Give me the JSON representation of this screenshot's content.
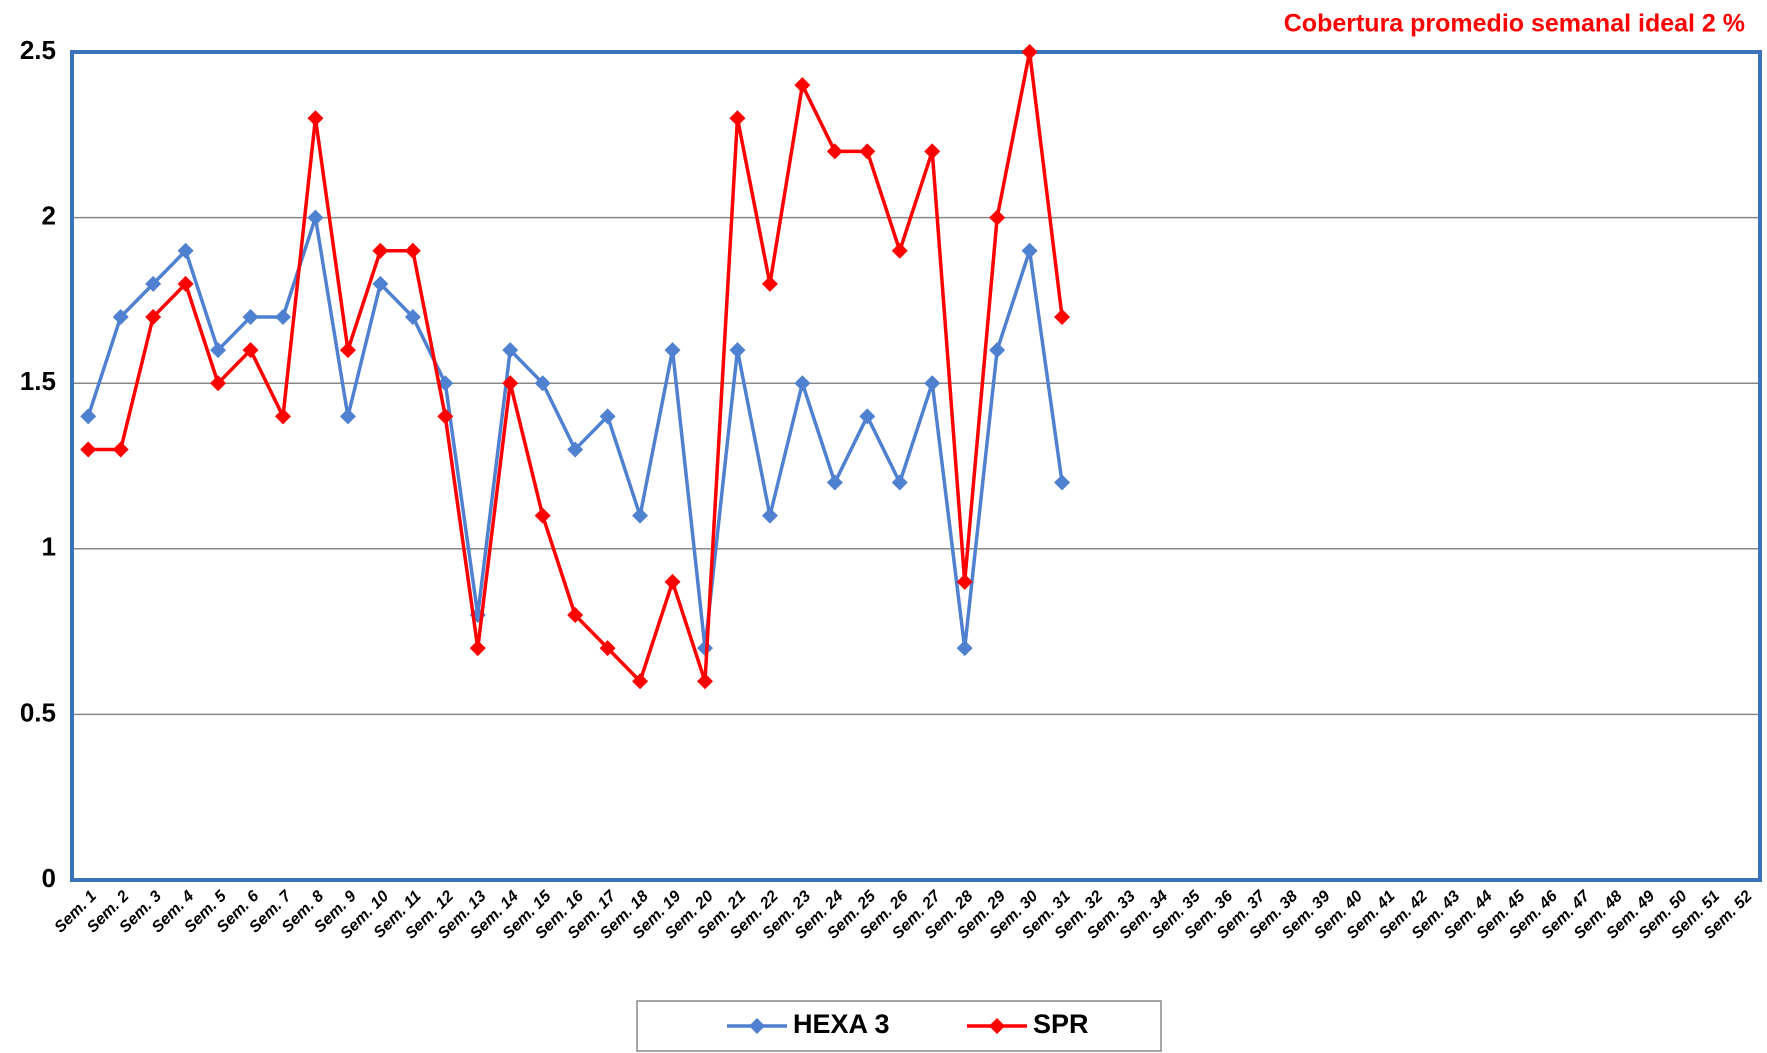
{
  "chart_data": {
    "type": "line",
    "title": "Cobertura promedio semanal ideal 2 %",
    "categories": [
      "Sem. 1",
      "Sem. 2",
      "Sem. 3",
      "Sem. 4",
      "Sem. 5",
      "Sem. 6",
      "Sem. 7",
      "Sem. 8",
      "Sem. 9",
      "Sem. 10",
      "Sem. 11",
      "Sem. 12",
      "Sem. 13",
      "Sem. 14",
      "Sem. 15",
      "Sem. 16",
      "Sem. 17",
      "Sem. 18",
      "Sem. 19",
      "Sem. 20",
      "Sem. 21",
      "Sem. 22",
      "Sem. 23",
      "Sem. 24",
      "Sem. 25",
      "Sem. 26",
      "Sem. 27",
      "Sem. 28",
      "Sem. 29",
      "Sem. 30",
      "Sem. 31",
      "Sem. 32",
      "Sem. 33",
      "Sem. 34",
      "Sem. 35",
      "Sem. 36",
      "Sem. 37",
      "Sem. 38",
      "Sem. 39",
      "Sem. 40",
      "Sem. 41",
      "Sem. 42",
      "Sem. 43",
      "Sem. 44",
      "Sem. 45",
      "Sem. 46",
      "Sem. 47",
      "Sem. 48",
      "Sem. 49",
      "Sem. 50",
      "Sem. 51",
      "Sem. 52"
    ],
    "series": [
      {
        "name": "HEXA 3",
        "color": "#4f81d0",
        "values": [
          1.4,
          1.7,
          1.8,
          1.9,
          1.6,
          1.7,
          1.7,
          2.0,
          1.4,
          1.8,
          1.7,
          1.5,
          0.8,
          1.6,
          1.5,
          1.3,
          1.4,
          1.1,
          1.6,
          0.7,
          1.6,
          1.1,
          1.5,
          1.2,
          1.4,
          1.2,
          1.5,
          0.7,
          1.6,
          1.9,
          1.2,
          null,
          null,
          null,
          null,
          null,
          null,
          null,
          null,
          null,
          null,
          null,
          null,
          null,
          null,
          null,
          null,
          null,
          null,
          null,
          null,
          null
        ]
      },
      {
        "name": "SPR",
        "color": "#ff0000",
        "values": [
          1.3,
          1.3,
          1.7,
          1.8,
          1.5,
          1.6,
          1.4,
          2.3,
          1.6,
          1.9,
          1.9,
          1.4,
          0.7,
          1.5,
          1.1,
          0.8,
          0.7,
          0.6,
          0.9,
          0.6,
          2.3,
          1.8,
          2.4,
          2.2,
          2.2,
          1.9,
          2.2,
          0.9,
          2.0,
          2.5,
          1.7,
          null,
          null,
          null,
          null,
          null,
          null,
          null,
          null,
          null,
          null,
          null,
          null,
          null,
          null,
          null,
          null,
          null,
          null,
          null,
          null,
          null
        ]
      }
    ],
    "ylim": [
      0,
      2.5
    ],
    "yticks": [
      0,
      0.5,
      1,
      1.5,
      2,
      2.5
    ],
    "grid": true,
    "legend": "bottom"
  }
}
